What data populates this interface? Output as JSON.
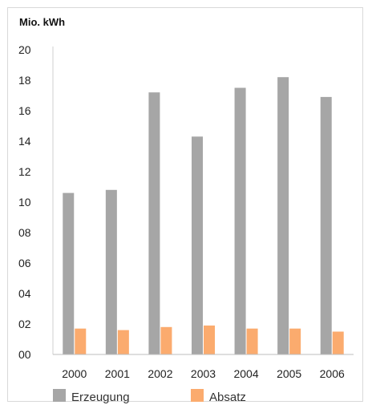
{
  "chart_data": {
    "type": "bar",
    "unit_label": "Mio. kWh",
    "categories": [
      "2000",
      "2001",
      "2002",
      "2003",
      "2004",
      "2005",
      "2006"
    ],
    "series": [
      {
        "name": "Erzeugung",
        "color": "#a6a6a6",
        "values": [
          10.6,
          10.8,
          17.2,
          14.3,
          17.5,
          18.2,
          16.9
        ]
      },
      {
        "name": "Absatz",
        "color": "#fbab6e",
        "values": [
          1.7,
          1.6,
          1.8,
          1.9,
          1.7,
          1.7,
          1.5
        ]
      }
    ],
    "yticks": [
      "00",
      "02",
      "04",
      "06",
      "08",
      "10",
      "12",
      "14",
      "16",
      "18",
      "20"
    ],
    "ylim": [
      0,
      20
    ],
    "grid": false,
    "legend_position": "bottom"
  }
}
